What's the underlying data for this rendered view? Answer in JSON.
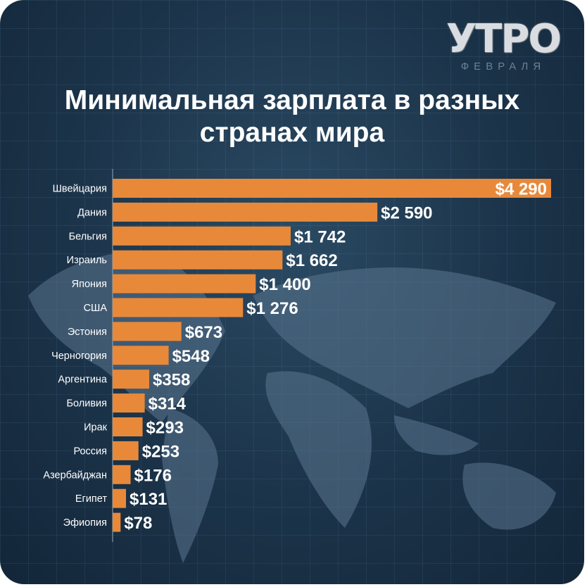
{
  "logo": {
    "main": "УТРО",
    "sub": "ФЕВРАЛЯ"
  },
  "title_line1": "Минимальная зарплата в разных",
  "title_line2": "странах мира",
  "colors": {
    "bar": "#e8893a",
    "background": "#1b3349",
    "text": "#ffffff"
  },
  "chart_data": {
    "type": "bar",
    "orientation": "horizontal",
    "title": "Минимальная зарплата в разных странах мира",
    "xlim": [
      0,
      4290
    ],
    "grid": false,
    "categories": [
      "Швейцария",
      "Дания",
      "Бельгия",
      "Израиль",
      "Япония",
      "США",
      "Эстония",
      "Черногория",
      "Аргентина",
      "Боливия",
      "Ирак",
      "Россия",
      "Азербайджан",
      "Египет",
      "Эфиопия"
    ],
    "values": [
      4290,
      2590,
      1742,
      1662,
      1400,
      1276,
      673,
      548,
      358,
      314,
      293,
      253,
      176,
      131,
      78
    ],
    "value_labels": [
      "$4 290",
      "$2 590",
      "$1 742",
      "$1 662",
      "$1 400",
      "$1 276",
      "$673",
      "$548",
      "$358",
      "$314",
      "$293",
      "$253",
      "$176",
      "$131",
      "$78"
    ]
  }
}
